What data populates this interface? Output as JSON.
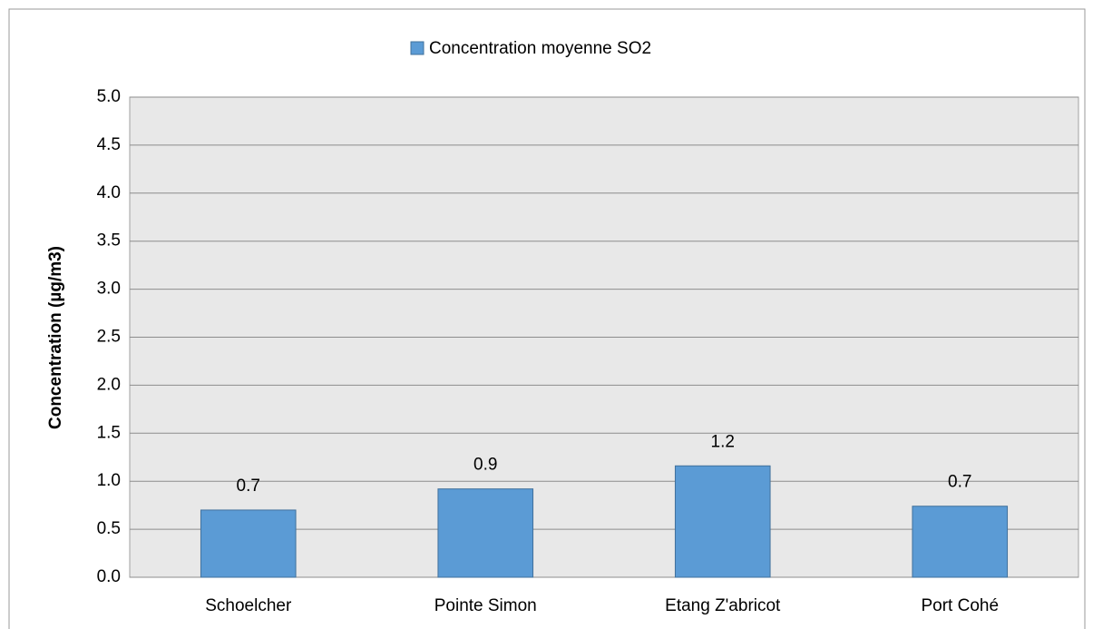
{
  "chart_data": {
    "type": "bar",
    "legend": "Concentration moyenne SO2",
    "y_label": "Concentration (µg/m3)",
    "categories": [
      "Schoelcher",
      "Pointe Simon",
      "Etang Z'abricot",
      "Port Cohé"
    ],
    "values": [
      0.7,
      0.92,
      1.16,
      0.74
    ],
    "value_labels": [
      "0.7",
      "0.9",
      "1.2",
      "0.7"
    ],
    "color": "#5b9bd5",
    "ylim": [
      0,
      5
    ],
    "yticks": [
      {
        "value": 0,
        "label": "0.0"
      },
      0.5,
      {
        "value": 1,
        "label": "1.0"
      },
      1.5,
      {
        "value": 2,
        "label": "2.0"
      },
      2.5,
      {
        "value": 3,
        "label": "3.0"
      },
      3.5,
      {
        "value": 4,
        "label": "4.0"
      },
      4.5,
      {
        "value": 5,
        "label": "5.0"
      }
    ],
    "grid": true
  }
}
